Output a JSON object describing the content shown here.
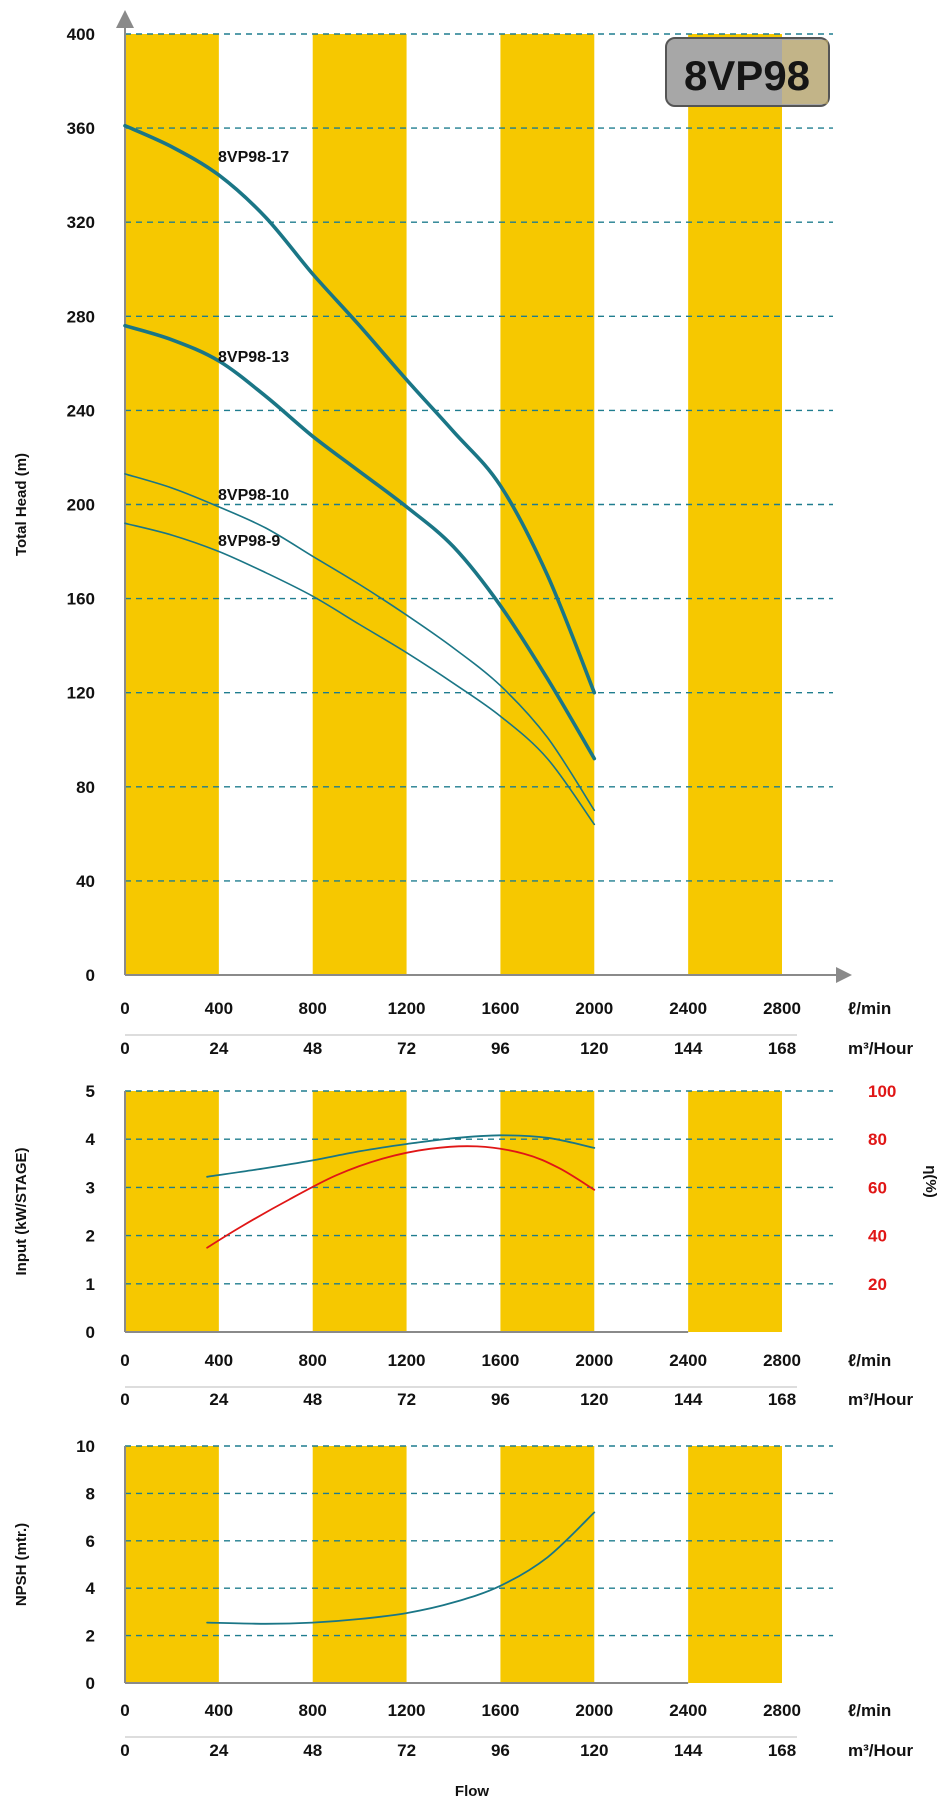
{
  "badge": "8VP98",
  "colors": {
    "band": "#f6c800",
    "grid": "#1f7d8f",
    "curve": "#1a7686",
    "efficiency": "#e01616",
    "badge_fill": "#a7a7a7",
    "badge_highlight": "#d9c070"
  },
  "x_axis": {
    "lmin_ticks": [
      "0",
      "400",
      "800",
      "1200",
      "1600",
      "2000",
      "2400",
      "2800"
    ],
    "lmin_unit": "ℓ/min",
    "m3h_ticks": [
      "0",
      "24",
      "48",
      "72",
      "96",
      "120",
      "144",
      "168"
    ],
    "m3h_unit": "m³/Hour",
    "title": "Flow"
  },
  "chart_data": [
    {
      "type": "line",
      "name": "head",
      "ylabel": "Total Head (m)",
      "ylim": [
        0,
        400
      ],
      "yticks": [
        "0",
        "40",
        "80",
        "120",
        "160",
        "200",
        "240",
        "280",
        "320",
        "360",
        "400"
      ],
      "xlim": [
        0,
        2800
      ],
      "x_unit": "ℓ/min",
      "bands": [
        [
          0,
          400
        ],
        [
          800,
          1200
        ],
        [
          1600,
          2000
        ],
        [
          2400,
          2800
        ]
      ],
      "series": [
        {
          "name": "8VP98-17",
          "weight": "thick",
          "x": [
            0,
            200,
            400,
            600,
            800,
            1000,
            1200,
            1400,
            1600,
            1800,
            2000
          ],
          "y": [
            361,
            352,
            340,
            322,
            298,
            276,
            253,
            231,
            208,
            170,
            120
          ]
        },
        {
          "name": "8VP98-13",
          "weight": "thick",
          "x": [
            0,
            200,
            400,
            600,
            800,
            1000,
            1200,
            1400,
            1600,
            1800,
            2000
          ],
          "y": [
            276,
            270,
            261,
            246,
            229,
            214,
            199,
            182,
            157,
            126,
            92
          ]
        },
        {
          "name": "8VP98-10",
          "weight": "thin",
          "x": [
            0,
            200,
            400,
            600,
            800,
            1000,
            1200,
            1400,
            1600,
            1800,
            2000
          ],
          "y": [
            213,
            207,
            199,
            190,
            178,
            166,
            153,
            139,
            123,
            101,
            70
          ]
        },
        {
          "name": "8VP98-9",
          "weight": "thin",
          "x": [
            0,
            200,
            400,
            600,
            800,
            1000,
            1200,
            1400,
            1600,
            1800,
            2000
          ],
          "y": [
            192,
            187,
            180,
            171,
            161,
            149,
            137,
            124,
            110,
            92,
            64
          ]
        }
      ]
    },
    {
      "type": "line",
      "name": "input-efficiency",
      "ylabel": "Input (kW/STAGE)",
      "ylim": [
        0,
        5
      ],
      "yticks": [
        "0",
        "1",
        "2",
        "3",
        "4",
        "5"
      ],
      "y2label": "η(%)",
      "y2lim": [
        0,
        100
      ],
      "y2ticks": [
        "20",
        "40",
        "60",
        "80",
        "100"
      ],
      "xlim": [
        0,
        2800
      ],
      "x_unit": "ℓ/min",
      "bands": [
        [
          0,
          400
        ],
        [
          800,
          1200
        ],
        [
          1600,
          2000
        ],
        [
          2400,
          2800
        ]
      ],
      "series": [
        {
          "name": "Input",
          "axis": "left",
          "x": [
            350,
            600,
            800,
            1000,
            1200,
            1400,
            1600,
            1800,
            2000
          ],
          "y": [
            3.22,
            3.4,
            3.56,
            3.75,
            3.9,
            4.02,
            4.08,
            4.03,
            3.82
          ]
        },
        {
          "name": "η",
          "axis": "right",
          "x": [
            350,
            500,
            700,
            900,
            1100,
            1300,
            1500,
            1700,
            1850,
            2000
          ],
          "y": [
            35,
            44,
            55,
            65,
            72,
            76,
            77,
            74,
            68,
            59
          ]
        }
      ]
    },
    {
      "type": "line",
      "name": "npsh",
      "ylabel": "NPSH (mtr.)",
      "ylim": [
        0,
        10
      ],
      "yticks": [
        "0",
        "2",
        "4",
        "6",
        "8",
        "10"
      ],
      "xlim": [
        0,
        2800
      ],
      "x_unit": "ℓ/min",
      "bands": [
        [
          0,
          400
        ],
        [
          800,
          1200
        ],
        [
          1600,
          2000
        ],
        [
          2400,
          2800
        ]
      ],
      "series": [
        {
          "name": "NPSH",
          "x": [
            350,
            600,
            800,
            1000,
            1200,
            1400,
            1600,
            1800,
            2000
          ],
          "y": [
            2.55,
            2.5,
            2.55,
            2.7,
            2.95,
            3.4,
            4.1,
            5.3,
            7.2
          ]
        }
      ]
    }
  ]
}
